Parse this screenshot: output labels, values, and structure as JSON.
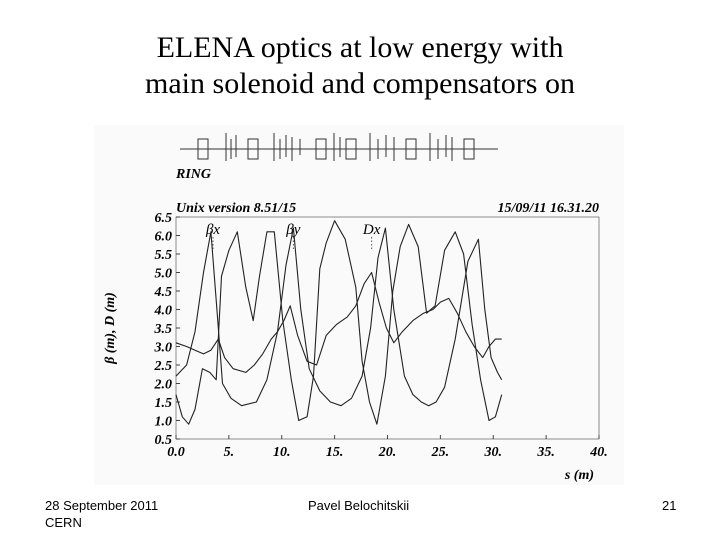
{
  "slide": {
    "title_line1": "ELENA optics at low energy with",
    "title_line2": "main solenoid and compensators on"
  },
  "footer": {
    "date": "28 September 2011",
    "org": "CERN",
    "author": "Pavel Belochitskii",
    "page": "21"
  },
  "chart_data": {
    "type": "line",
    "header": {
      "ring_label": "RING",
      "version": "Unix version 8.51/15",
      "date_time": "15/09/11  16.31.20"
    },
    "xlabel": "s (m)",
    "ylabel": "β (m), D (m)",
    "xlim": [
      0.0,
      40.0
    ],
    "ylim": [
      0.5,
      6.5
    ],
    "xticks": [
      0,
      5,
      10,
      15,
      20,
      25,
      30,
      35,
      40
    ],
    "xtick_labels": [
      "0.0",
      "5.",
      "10.",
      "15.",
      "20.",
      "25.",
      "30.",
      "35.",
      "40."
    ],
    "yticks": [
      0.5,
      1.0,
      1.5,
      2.0,
      2.5,
      3.0,
      3.5,
      4.0,
      4.5,
      5.0,
      5.5,
      6.0,
      6.5
    ],
    "ytick_labels": [
      "0.5",
      "1.0",
      "1.5",
      "2.0",
      "2.5",
      "3.0",
      "3.5",
      "4.0",
      "4.5",
      "5.0",
      "5.5",
      "6.0",
      "6.5"
    ],
    "legend_labels": [
      "βx",
      "βy",
      "Dx"
    ],
    "line_color": "#222222",
    "series": [
      {
        "name": "βx",
        "x": [
          0,
          1,
          1.8,
          2.6,
          3.3,
          3.9,
          4.4,
          5.2,
          6.2,
          7.6,
          8.6,
          9.6,
          10.4,
          11.1,
          11.8,
          12.6,
          13.6,
          14.6,
          15.6,
          16.6,
          17.6,
          18.4,
          19.1,
          19.8,
          20.6,
          21.6,
          22.4,
          23.2,
          23.9,
          24.6,
          25.4,
          26.4,
          27.6,
          28.6,
          29.2,
          29.8,
          30.4,
          30.8
        ],
        "y": [
          2.2,
          2.5,
          3.4,
          5.0,
          6.1,
          3.9,
          2.0,
          1.6,
          1.4,
          1.5,
          2.1,
          3.4,
          5.2,
          6.2,
          4.0,
          2.4,
          1.8,
          1.5,
          1.4,
          1.6,
          2.2,
          3.5,
          5.4,
          6.2,
          4.0,
          2.2,
          1.7,
          1.5,
          1.4,
          1.5,
          1.9,
          3.2,
          5.3,
          5.9,
          4.0,
          2.7,
          2.3,
          2.1
        ]
      },
      {
        "name": "βy",
        "x": [
          0,
          0.6,
          1.2,
          1.8,
          2.5,
          3.2,
          3.8,
          4.3,
          5.0,
          5.8,
          6.6,
          7.3,
          7.9,
          8.6,
          9.3,
          10.1,
          10.9,
          11.6,
          12.4,
          13.0,
          13.6,
          14.2,
          15.0,
          16.0,
          17.0,
          17.6,
          18.3,
          19.0,
          19.8,
          20.5,
          21.2,
          22.0,
          22.9,
          23.7,
          24.5,
          25.4,
          26.4,
          27.2,
          28.0,
          28.8,
          29.6,
          30.2,
          30.8
        ],
        "y": [
          1.7,
          1.1,
          0.9,
          1.3,
          2.4,
          2.3,
          2.1,
          4.9,
          5.6,
          6.1,
          4.6,
          3.7,
          4.9,
          6.1,
          6.1,
          3.7,
          2.1,
          1.0,
          1.1,
          2.2,
          5.1,
          5.8,
          6.4,
          5.9,
          4.6,
          2.6,
          1.5,
          0.9,
          2.2,
          4.5,
          5.7,
          6.3,
          5.7,
          3.9,
          4.1,
          5.6,
          6.1,
          5.5,
          3.6,
          2.1,
          1.0,
          1.1,
          1.7
        ]
      },
      {
        "name": "Dx",
        "x": [
          0,
          1.0,
          1.8,
          2.6,
          3.3,
          4.0,
          4.6,
          5.4,
          6.6,
          7.4,
          8.2,
          9.0,
          9.6,
          10.2,
          10.8,
          11.5,
          12.4,
          13.3,
          14.2,
          15.2,
          16.2,
          17.0,
          17.8,
          18.5,
          19.2,
          19.9,
          20.6,
          21.4,
          22.4,
          23.4,
          24.3,
          25.0,
          25.8,
          26.6,
          27.4,
          28.2,
          29.0,
          29.6,
          30.2,
          30.8
        ],
        "y": [
          3.1,
          3.0,
          2.9,
          2.8,
          2.9,
          3.2,
          2.7,
          2.4,
          2.3,
          2.5,
          2.8,
          3.2,
          3.4,
          3.7,
          4.1,
          3.3,
          2.6,
          2.5,
          3.3,
          3.6,
          3.8,
          4.1,
          4.7,
          5.0,
          4.2,
          3.5,
          3.1,
          3.4,
          3.7,
          3.9,
          4.0,
          4.2,
          4.3,
          3.9,
          3.4,
          3.0,
          2.7,
          3.0,
          3.2,
          3.2
        ]
      }
    ]
  }
}
